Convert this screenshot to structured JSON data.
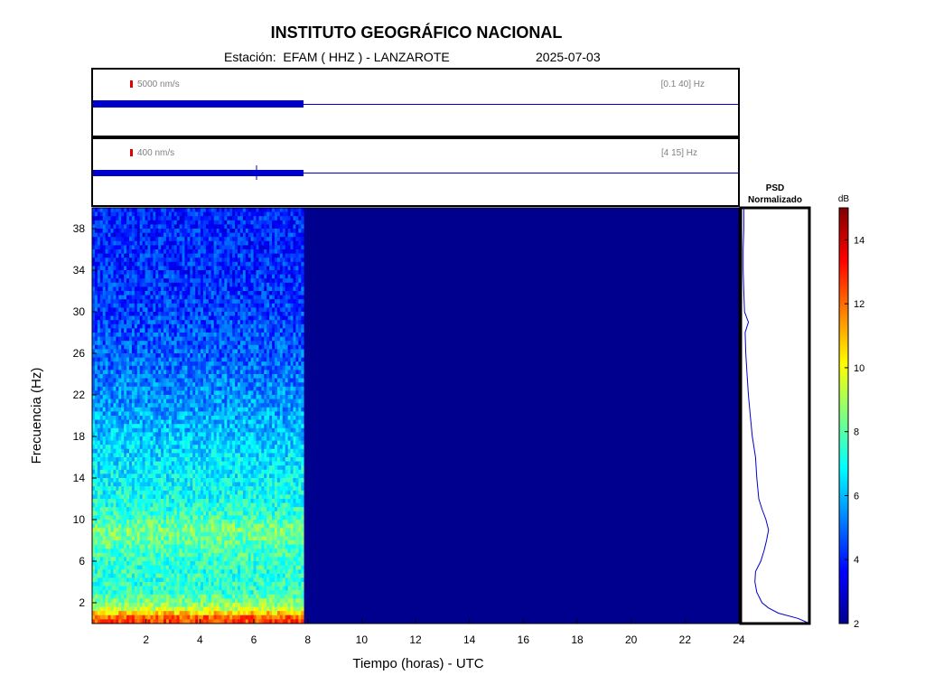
{
  "header": {
    "title": "INSTITUTO GEOGRÁFICO NACIONAL",
    "station": "Estación:  EFAM ( HHZ ) - LANZAROTE",
    "date": "2025-07-03"
  },
  "chart_data": [
    {
      "type": "line",
      "panel": "seismogram-broadband",
      "scale_label": "5000 nm/s",
      "filter_label": "[0.1 40] Hz",
      "x_range_hours": [
        0,
        24
      ],
      "data_end_hour": 7.85,
      "scale_bar_color": "#e00000",
      "trace_color": "#0000cc"
    },
    {
      "type": "line",
      "panel": "seismogram-filtered",
      "scale_label": "400 nm/s",
      "filter_label": "[4 15] Hz",
      "x_range_hours": [
        0,
        24
      ],
      "data_end_hour": 7.85,
      "scale_bar_color": "#e00000",
      "trace_color": "#0000cc"
    },
    {
      "type": "heatmap",
      "panel": "spectrogram",
      "xlabel": "Tiempo (horas) - UTC",
      "ylabel": "Frecuencia  (Hz)",
      "xlim": [
        0,
        24
      ],
      "ylim": [
        0,
        40
      ],
      "x_ticks": [
        2,
        4,
        6,
        8,
        10,
        12,
        14,
        16,
        18,
        20,
        22,
        24
      ],
      "y_ticks": [
        2,
        6,
        10,
        14,
        18,
        22,
        26,
        30,
        34,
        38
      ],
      "data_end_hour": 7.85,
      "empty_value_db": 2,
      "mean_db_by_frequency": [
        {
          "hz": 0.5,
          "db": 12.5
        },
        {
          "hz": 1.5,
          "db": 9.0
        },
        {
          "hz": 3,
          "db": 7.5
        },
        {
          "hz": 5,
          "db": 7.4
        },
        {
          "hz": 7,
          "db": 7.8
        },
        {
          "hz": 9,
          "db": 8.4
        },
        {
          "hz": 11,
          "db": 7.3
        },
        {
          "hz": 14,
          "db": 6.8
        },
        {
          "hz": 18,
          "db": 6.2
        },
        {
          "hz": 22,
          "db": 5.4
        },
        {
          "hz": 26,
          "db": 4.8
        },
        {
          "hz": 30,
          "db": 4.4
        },
        {
          "hz": 34,
          "db": 4.2
        },
        {
          "hz": 38,
          "db": 4.1
        },
        {
          "hz": 40,
          "db": 4.0
        }
      ]
    },
    {
      "type": "line",
      "panel": "psd",
      "title_line1": "PSD",
      "title_line2": "Normalizado",
      "ylim": [
        0,
        40
      ],
      "xlim": [
        0,
        1
      ],
      "points": [
        {
          "hz": 0.1,
          "psd": 1.0
        },
        {
          "hz": 0.5,
          "psd": 0.85
        },
        {
          "hz": 1.0,
          "psd": 0.55
        },
        {
          "hz": 1.5,
          "psd": 0.4
        },
        {
          "hz": 2.0,
          "psd": 0.3
        },
        {
          "hz": 3.0,
          "psd": 0.22
        },
        {
          "hz": 4.0,
          "psd": 0.19
        },
        {
          "hz": 5.0,
          "psd": 0.2
        },
        {
          "hz": 6.0,
          "psd": 0.28
        },
        {
          "hz": 7.0,
          "psd": 0.33
        },
        {
          "hz": 8.0,
          "psd": 0.37
        },
        {
          "hz": 9.0,
          "psd": 0.4
        },
        {
          "hz": 10.0,
          "psd": 0.36
        },
        {
          "hz": 11.0,
          "psd": 0.3
        },
        {
          "hz": 12.0,
          "psd": 0.25
        },
        {
          "hz": 14.0,
          "psd": 0.22
        },
        {
          "hz": 16.0,
          "psd": 0.2
        },
        {
          "hz": 18.0,
          "psd": 0.15
        },
        {
          "hz": 20.0,
          "psd": 0.12
        },
        {
          "hz": 22.0,
          "psd": 0.09
        },
        {
          "hz": 24.0,
          "psd": 0.07
        },
        {
          "hz": 26.0,
          "psd": 0.05
        },
        {
          "hz": 28.0,
          "psd": 0.04
        },
        {
          "hz": 29.0,
          "psd": 0.09
        },
        {
          "hz": 30.0,
          "psd": 0.03
        },
        {
          "hz": 32.0,
          "psd": 0.02
        },
        {
          "hz": 34.0,
          "psd": 0.01
        },
        {
          "hz": 36.0,
          "psd": 0.01
        },
        {
          "hz": 38.0,
          "psd": 0.02
        },
        {
          "hz": 40.0,
          "psd": 0.02
        }
      ]
    },
    {
      "type": "heatmap",
      "panel": "colorbar",
      "unit_label": "dB",
      "range": [
        2,
        15
      ],
      "ticks": [
        2,
        4,
        6,
        8,
        10,
        12,
        14
      ]
    }
  ]
}
